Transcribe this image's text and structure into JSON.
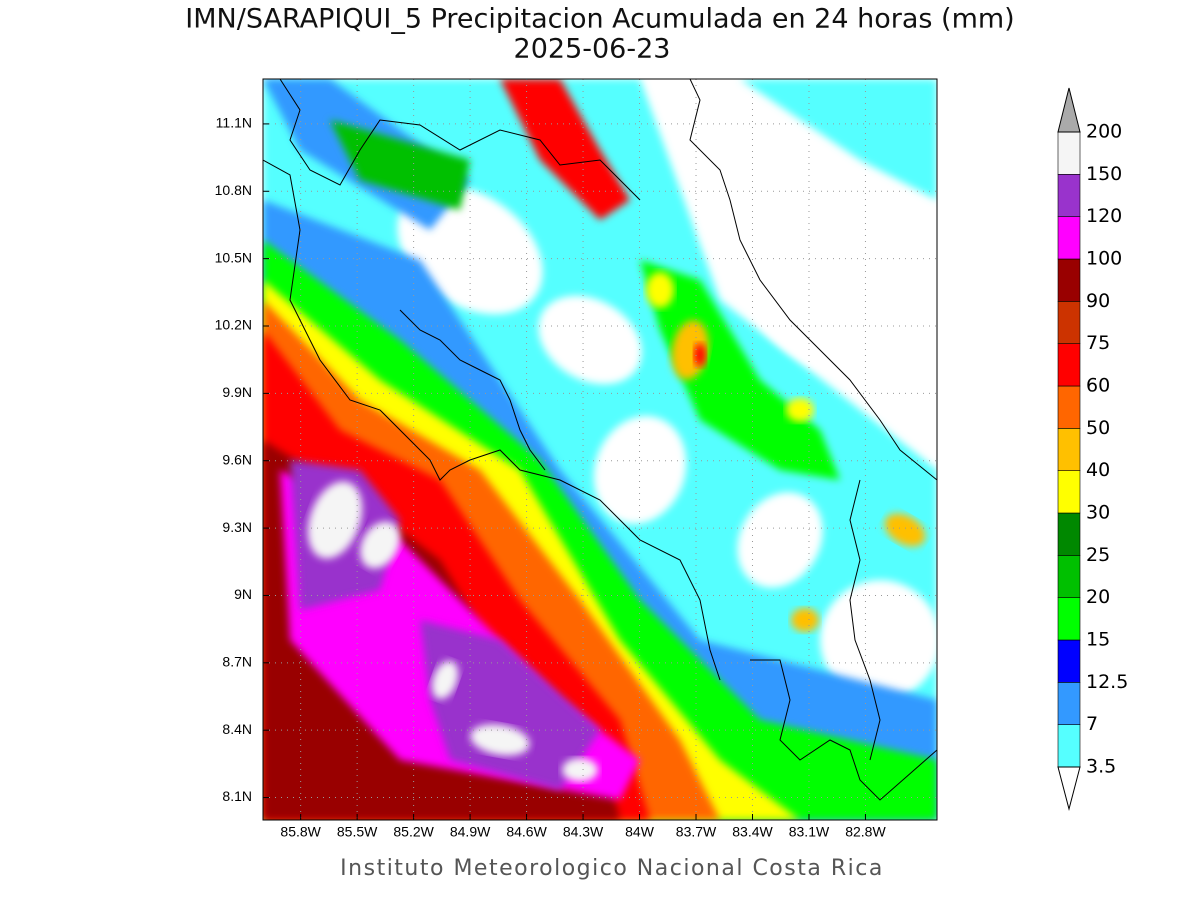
{
  "title": "IMN/SARAPIQUI_5 Precipitacion Acumulada en 24 horas (mm)",
  "subtitle": "2025-06-23",
  "footer": "Instituto Meteorologico Nacional Costa Rica",
  "map": {
    "xlim": [
      -86.0,
      -82.42
    ],
    "ylim": [
      8.0,
      11.3
    ],
    "grid": true,
    "xticks": [
      {
        "value": -85.8,
        "label": "85.8W"
      },
      {
        "value": -85.5,
        "label": "85.5W"
      },
      {
        "value": -85.2,
        "label": "85.2W"
      },
      {
        "value": -84.9,
        "label": "84.9W"
      },
      {
        "value": -84.6,
        "label": "84.6W"
      },
      {
        "value": -84.3,
        "label": "84.3W"
      },
      {
        "value": -84,
        "label": "84W"
      },
      {
        "value": -83.7,
        "label": "83.7W"
      },
      {
        "value": -83.4,
        "label": "83.4W"
      },
      {
        "value": -83.1,
        "label": "83.1W"
      },
      {
        "value": -82.8,
        "label": "82.8W"
      }
    ],
    "yticks": [
      {
        "value": 8.1,
        "label": "8.1N"
      },
      {
        "value": 8.4,
        "label": "8.4N"
      },
      {
        "value": 8.7,
        "label": "8.7N"
      },
      {
        "value": 9,
        "label": "9N"
      },
      {
        "value": 9.3,
        "label": "9.3N"
      },
      {
        "value": 9.6,
        "label": "9.6N"
      },
      {
        "value": 9.9,
        "label": "9.9N"
      },
      {
        "value": 10.2,
        "label": "10.2N"
      },
      {
        "value": 10.5,
        "label": "10.5N"
      },
      {
        "value": 10.8,
        "label": "10.8N"
      },
      {
        "value": 11.1,
        "label": "11.1N"
      }
    ]
  },
  "colorbar": {
    "levels": [
      3.5,
      7,
      12.5,
      15,
      20,
      25,
      30,
      40,
      50,
      60,
      75,
      90,
      100,
      120,
      150,
      200
    ],
    "colors": [
      "#55ffff",
      "#3399ff",
      "#0000ff",
      "#00ff00",
      "#00c000",
      "#008800",
      "#ffff00",
      "#ffc000",
      "#ff6600",
      "#ff0000",
      "#cc3300",
      "#990000",
      "#ff00ff",
      "#9933cc",
      "#f5f5f5"
    ],
    "over_color": "#aaaaaa",
    "under_color": "#ffffff"
  }
}
